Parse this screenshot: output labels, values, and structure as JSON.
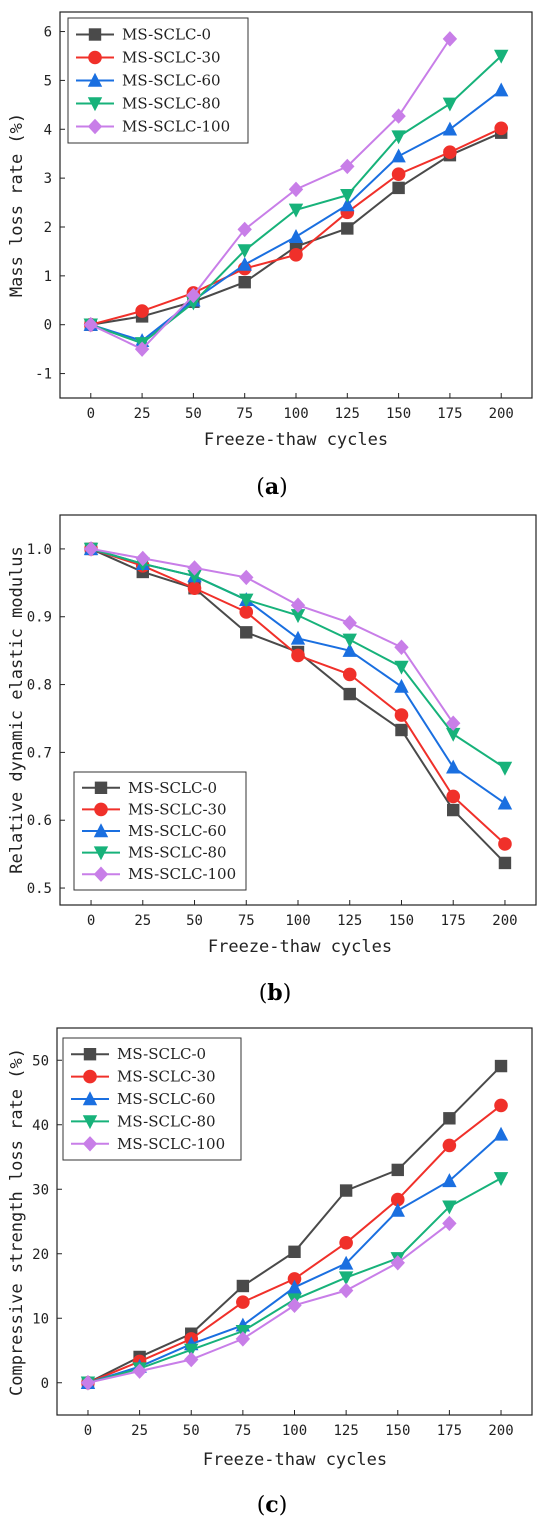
{
  "colors": {
    "MS-SCLC-0": "#4a4a4a",
    "MS-SCLC-30": "#f0302a",
    "MS-SCLC-60": "#1a6fe0",
    "MS-SCLC-80": "#17b27a",
    "MS-SCLC-100": "#c87ee8"
  },
  "markers": {
    "MS-SCLC-0": "square",
    "MS-SCLC-30": "circle",
    "MS-SCLC-60": "triangle-up",
    "MS-SCLC-80": "triangle-down",
    "MS-SCLC-100": "diamond"
  },
  "chart_data": [
    {
      "type": "line",
      "panel": "(a)",
      "xlabel": "Freeze-thaw cycles",
      "ylabel": "Mass loss rate (%)",
      "x": [
        0,
        25,
        50,
        75,
        100,
        125,
        150,
        175,
        200
      ],
      "xticks": [
        "0",
        "25",
        "50",
        "75",
        "100",
        "125",
        "150",
        "175",
        "200"
      ],
      "xlim": [
        -15,
        215
      ],
      "yticks": [
        "-1",
        "0",
        "1",
        "2",
        "3",
        "4",
        "5",
        "6"
      ],
      "ytick_values": [
        -1,
        0,
        1,
        2,
        3,
        4,
        5,
        6
      ],
      "ylim": [
        -1.5,
        6.4
      ],
      "legend_position": "upper-left",
      "series": [
        {
          "name": "MS-SCLC-0",
          "values": [
            0,
            0.17,
            0.47,
            0.87,
            1.6,
            1.97,
            2.8,
            3.47,
            3.93
          ]
        },
        {
          "name": "MS-SCLC-30",
          "values": [
            0,
            0.28,
            0.65,
            1.15,
            1.43,
            2.3,
            3.08,
            3.53,
            4.02
          ]
        },
        {
          "name": "MS-SCLC-60",
          "values": [
            0,
            -0.33,
            0.5,
            1.23,
            1.8,
            2.45,
            3.45,
            4.0,
            4.8
          ]
        },
        {
          "name": "MS-SCLC-80",
          "values": [
            0,
            -0.38,
            0.45,
            1.52,
            2.35,
            2.65,
            3.85,
            4.52,
            5.5
          ]
        },
        {
          "name": "MS-SCLC-100",
          "values": [
            0,
            -0.5,
            0.6,
            1.95,
            2.77,
            3.24,
            4.27,
            5.85,
            null
          ]
        }
      ]
    },
    {
      "type": "line",
      "panel": "(b)",
      "xlabel": "Freeze-thaw cycles",
      "ylabel": "Relative dynamic elastic modulus",
      "x": [
        0,
        25,
        50,
        75,
        100,
        125,
        150,
        175,
        200
      ],
      "xticks": [
        "0",
        "25",
        "50",
        "75",
        "100",
        "125",
        "150",
        "175",
        "200"
      ],
      "xlim": [
        -15,
        215
      ],
      "yticks": [
        "0.5",
        "0.6",
        "0.7",
        "0.8",
        "0.9",
        "1.0"
      ],
      "ytick_values": [
        0.5,
        0.6,
        0.7,
        0.8,
        0.9,
        1.0
      ],
      "ylim": [
        0.475,
        1.05
      ],
      "legend_position": "lower-left",
      "series": [
        {
          "name": "MS-SCLC-0",
          "values": [
            1.0,
            0.966,
            0.942,
            0.877,
            0.848,
            0.786,
            0.733,
            0.615,
            0.537
          ]
        },
        {
          "name": "MS-SCLC-30",
          "values": [
            1.0,
            0.975,
            0.942,
            0.907,
            0.843,
            0.815,
            0.755,
            0.635,
            0.565
          ]
        },
        {
          "name": "MS-SCLC-60",
          "values": [
            1.0,
            0.978,
            0.96,
            0.925,
            0.868,
            0.85,
            0.797,
            0.678,
            0.625
          ]
        },
        {
          "name": "MS-SCLC-80",
          "values": [
            1.0,
            0.978,
            0.96,
            0.925,
            0.902,
            0.866,
            0.826,
            0.727,
            0.677
          ]
        },
        {
          "name": "MS-SCLC-100",
          "values": [
            1.0,
            0.986,
            0.972,
            0.958,
            0.917,
            0.891,
            0.855,
            0.743,
            null
          ]
        }
      ]
    },
    {
      "type": "line",
      "panel": "(c)",
      "xlabel": "Freeze-thaw cycles",
      "ylabel": "Compressive strength loss rate (%)",
      "x": [
        0,
        25,
        50,
        75,
        100,
        125,
        150,
        175,
        200
      ],
      "xticks": [
        "0",
        "25",
        "50",
        "75",
        "100",
        "125",
        "150",
        "175",
        "200"
      ],
      "xlim": [
        -15,
        215
      ],
      "yticks": [
        "0",
        "10",
        "20",
        "30",
        "40",
        "50"
      ],
      "ytick_values": [
        0,
        10,
        20,
        30,
        40,
        50
      ],
      "ylim": [
        -5,
        55
      ],
      "legend_position": "upper-left",
      "series": [
        {
          "name": "MS-SCLC-0",
          "values": [
            0,
            4.0,
            7.6,
            15.0,
            20.3,
            29.8,
            33.0,
            41.0,
            49.1
          ]
        },
        {
          "name": "MS-SCLC-30",
          "values": [
            0,
            3.3,
            6.8,
            12.5,
            16.1,
            21.7,
            28.4,
            36.8,
            43.0
          ]
        },
        {
          "name": "MS-SCLC-60",
          "values": [
            0,
            2.5,
            6.0,
            8.9,
            14.8,
            18.5,
            26.7,
            31.3,
            38.5
          ]
        },
        {
          "name": "MS-SCLC-80",
          "values": [
            0,
            2.2,
            5.1,
            8.0,
            12.9,
            16.3,
            19.3,
            27.3,
            31.7
          ]
        },
        {
          "name": "MS-SCLC-100",
          "values": [
            0,
            1.8,
            3.6,
            6.8,
            12.0,
            14.3,
            18.6,
            24.7,
            null
          ]
        }
      ]
    }
  ]
}
